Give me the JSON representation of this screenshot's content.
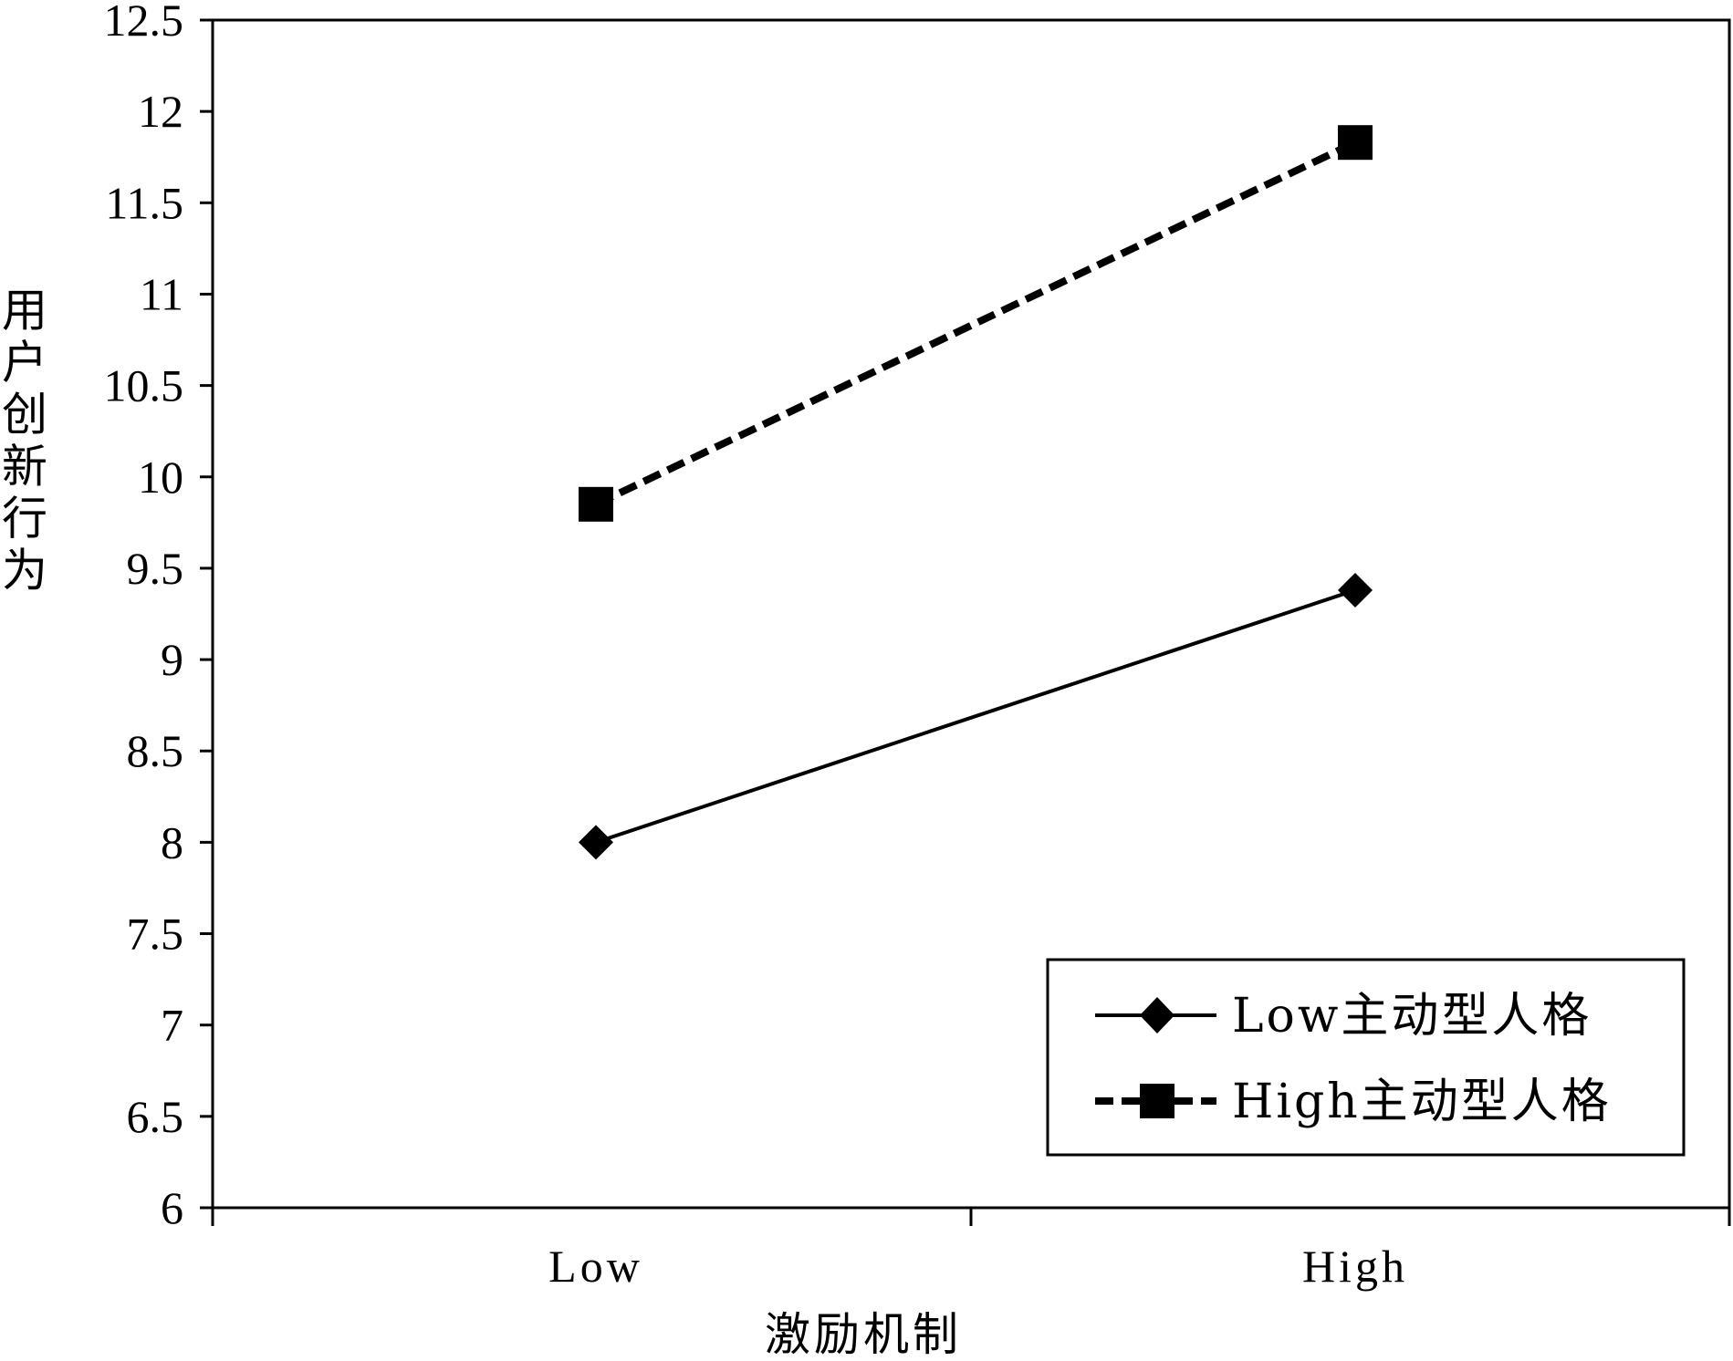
{
  "chart_data": {
    "type": "line",
    "title": "",
    "xlabel": "激励机制",
    "ylabel": "用户创新行为",
    "categories": [
      "Low",
      "High"
    ],
    "ylim": [
      6,
      12.5
    ],
    "yticks": [
      6,
      6.5,
      7,
      7.5,
      8,
      8.5,
      9,
      9.5,
      10,
      10.5,
      11,
      11.5,
      12,
      12.5
    ],
    "ytick_labels": [
      "6",
      "6.5",
      "7",
      "7.5",
      "8",
      "8.5",
      "9",
      "9.5",
      "10",
      "10.5",
      "11",
      "11.5",
      "12",
      "12.5"
    ],
    "grid": false,
    "legend_position": "bottom-right",
    "series": [
      {
        "name": "Low主动型人格",
        "values": [
          8.0,
          9.38
        ],
        "line_style": "solid",
        "marker": "diamond",
        "color": "#000000"
      },
      {
        "name": "High主动型人格",
        "values": [
          9.85,
          11.83
        ],
        "line_style": "dashed",
        "marker": "square",
        "color": "#000000"
      }
    ]
  }
}
